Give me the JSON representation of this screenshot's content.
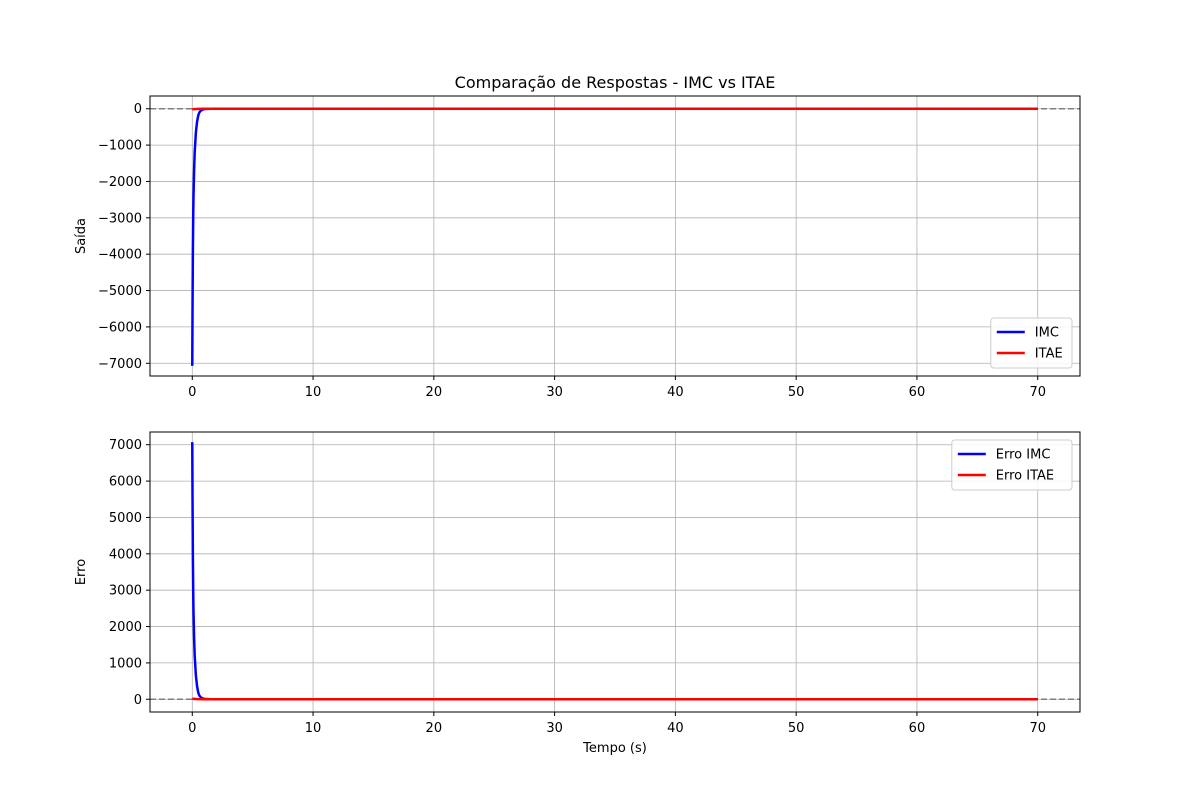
{
  "chart_data": [
    {
      "type": "line",
      "title": "Comparação de Respostas - IMC vs ITAE",
      "xlabel": "",
      "ylabel": "Saída",
      "xlim": [
        -3.5,
        73.5
      ],
      "ylim": [
        -7350,
        350
      ],
      "xticks": [
        0,
        10,
        20,
        30,
        40,
        50,
        60,
        70
      ],
      "yticks": [
        -7000,
        -6000,
        -5000,
        -4000,
        -3000,
        -2000,
        -1000,
        0
      ],
      "ytick_labels": [
        "−7000",
        "−6000",
        "−5000",
        "−4000",
        "−3000",
        "−2000",
        "−1000",
        "0"
      ],
      "grid": true,
      "legend_position": "lower-right",
      "reference_line": {
        "y": 0,
        "style": "dashed",
        "color": "#808080"
      },
      "series": [
        {
          "name": "IMC",
          "color": "#0000ff",
          "x": [
            0,
            0.02,
            0.05,
            0.08,
            0.1,
            0.15,
            0.2,
            0.3,
            0.4,
            0.5,
            0.6,
            0.8,
            1.0,
            1.5,
            2,
            5,
            10,
            20,
            30,
            40,
            50,
            60,
            70
          ],
          "y": [
            -7070,
            -5600,
            -3900,
            -2900,
            -2450,
            -1700,
            -1200,
            -650,
            -350,
            -180,
            -90,
            -30,
            -10,
            -2,
            0,
            0,
            0,
            0,
            0,
            0,
            0,
            0,
            0
          ]
        },
        {
          "name": "ITAE",
          "color": "#ff0000",
          "x": [
            0,
            0.5,
            1,
            2,
            5,
            10,
            20,
            30,
            40,
            50,
            60,
            70
          ],
          "y": [
            -15,
            -5,
            0,
            0,
            0,
            0,
            0,
            0,
            0,
            0,
            0,
            0
          ]
        }
      ]
    },
    {
      "type": "line",
      "title": "",
      "xlabel": "Tempo (s)",
      "ylabel": "Erro",
      "xlim": [
        -3.5,
        73.5
      ],
      "ylim": [
        -350,
        7350
      ],
      "xticks": [
        0,
        10,
        20,
        30,
        40,
        50,
        60,
        70
      ],
      "yticks": [
        0,
        1000,
        2000,
        3000,
        4000,
        5000,
        6000,
        7000
      ],
      "ytick_labels": [
        "0",
        "1000",
        "2000",
        "3000",
        "4000",
        "5000",
        "6000",
        "7000"
      ],
      "grid": true,
      "legend_position": "upper-right",
      "reference_line": {
        "y": 0,
        "style": "dashed",
        "color": "#808080"
      },
      "series": [
        {
          "name": "Erro IMC",
          "color": "#0000ff",
          "x": [
            0,
            0.02,
            0.05,
            0.08,
            0.1,
            0.15,
            0.2,
            0.3,
            0.4,
            0.5,
            0.6,
            0.8,
            1.0,
            1.5,
            2,
            5,
            10,
            20,
            30,
            40,
            50,
            60,
            70
          ],
          "y": [
            7070,
            5600,
            3900,
            2900,
            2450,
            1700,
            1200,
            650,
            350,
            180,
            90,
            30,
            10,
            2,
            0,
            0,
            0,
            0,
            0,
            0,
            0,
            0,
            0
          ]
        },
        {
          "name": "Erro ITAE",
          "color": "#ff0000",
          "x": [
            0,
            0.5,
            1,
            2,
            5,
            10,
            20,
            30,
            40,
            50,
            60,
            70
          ],
          "y": [
            15,
            5,
            0,
            0,
            0,
            0,
            0,
            0,
            0,
            0,
            0,
            0
          ]
        }
      ]
    }
  ]
}
